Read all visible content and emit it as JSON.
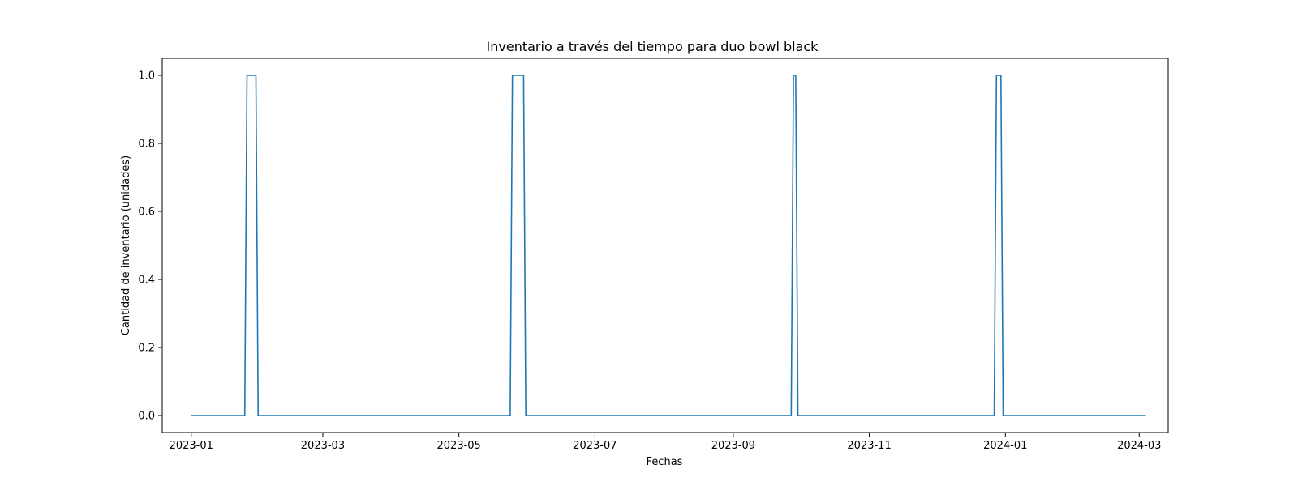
{
  "chart_data": {
    "type": "line",
    "title": "Inventario a través del tiempo para duo bowl black",
    "xlabel": "Fechas",
    "ylabel": "Cantidad de inventario (unidades)",
    "x_ticks": [
      "2023-01",
      "2023-03",
      "2023-05",
      "2023-07",
      "2023-09",
      "2023-11",
      "2024-01",
      "2024-03"
    ],
    "y_ticks": [
      "0.0",
      "0.2",
      "0.4",
      "0.6",
      "0.8",
      "1.0"
    ],
    "xlim": [
      "2022-12-19",
      "2024-03-14"
    ],
    "ylim": [
      -0.05,
      1.05
    ],
    "grid": false,
    "line_color": "#1f77b4",
    "series": [
      {
        "x": [
          "2023-01-01",
          "2023-01-25",
          "2023-01-26",
          "2023-01-30",
          "2023-01-31",
          "2023-05-24",
          "2023-05-25",
          "2023-05-30",
          "2023-05-31",
          "2023-09-27",
          "2023-09-28",
          "2023-09-29",
          "2023-09-30",
          "2023-12-27",
          "2023-12-28",
          "2023-12-30",
          "2023-12-31",
          "2024-03-04"
        ],
        "y": [
          0,
          0,
          1,
          1,
          0,
          0,
          1,
          1,
          0,
          0,
          1,
          1,
          0,
          0,
          1,
          1,
          0,
          0
        ]
      }
    ]
  }
}
